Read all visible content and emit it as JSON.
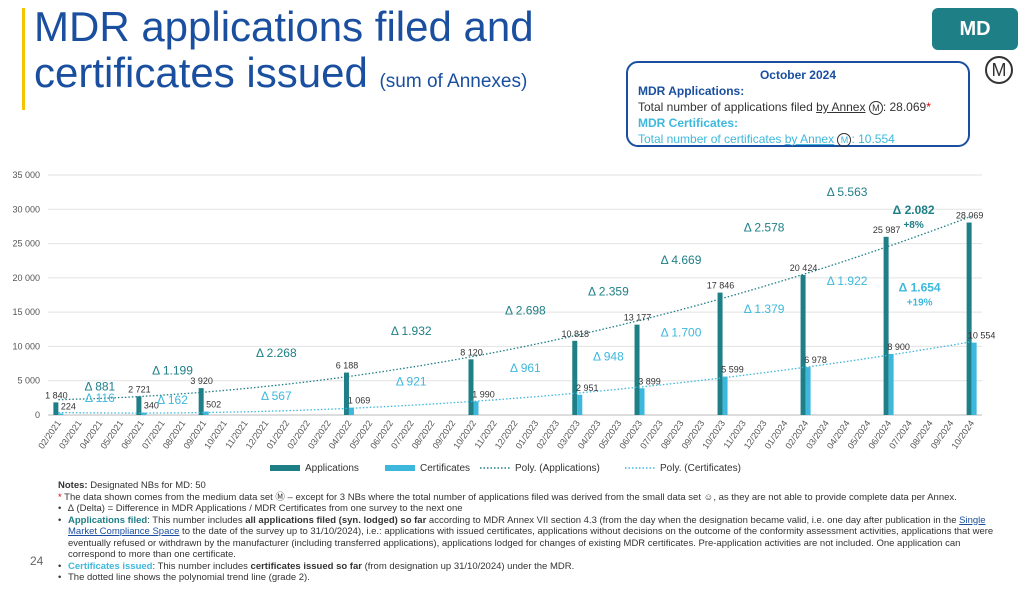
{
  "title": {
    "main_line1": "MDR applications filed and",
    "main_line2": "certificates issued",
    "sub": "(sum of Annexes)"
  },
  "badge": {
    "label": "MD",
    "symbol": "Ⓜ"
  },
  "infobox": {
    "header": "October 2024",
    "app_label": "MDR Applications:",
    "app_text": "Total number of applications filed ",
    "app_link": "by Annex",
    "app_value": ": 28.069",
    "app_star": "*",
    "cert_label": "MDR Certificates:",
    "cert_text": "Total number of certificates ",
    "cert_link": "by Annex",
    "cert_value": ":  10.554",
    "circle": "M"
  },
  "colors": {
    "applications": "#1e7f86",
    "certificates": "#3db8dc",
    "title": "#1a4fa0",
    "grid": "#e2e2e2"
  },
  "chart_data": {
    "type": "bar",
    "categories": [
      "02/2021",
      "03/2021",
      "04/2021",
      "05/2021",
      "06/2021",
      "07/2021",
      "08/2021",
      "09/2021",
      "10/2021",
      "11/2021",
      "12/2021",
      "01/2022",
      "02/2022",
      "03/2022",
      "04/2022",
      "05/2022",
      "06/2022",
      "07/2022",
      "08/2022",
      "09/2022",
      "10/2022",
      "11/2022",
      "12/2022",
      "01/2023",
      "02/2023",
      "03/2023",
      "04/2023",
      "05/2023",
      "06/2023",
      "07/2023",
      "08/2023",
      "09/2023",
      "10/2023",
      "11/2023",
      "12/2023",
      "01/2024",
      "02/2024",
      "03/2024",
      "04/2024",
      "05/2024",
      "06/2024",
      "07/2024",
      "08/2024",
      "09/2024",
      "10/2024"
    ],
    "ylim": [
      0,
      35000
    ],
    "yticks": [
      "0",
      "5 000",
      "10 000",
      "15 000",
      "20 000",
      "25 000",
      "30 000",
      "35 000"
    ],
    "grid": true,
    "legend_position": "bottom",
    "series": [
      {
        "name": "Applications",
        "points": [
          {
            "i": 0,
            "v": 1840,
            "label": "1 840"
          },
          {
            "i": 4,
            "v": 2721,
            "label": "2 721"
          },
          {
            "i": 7,
            "v": 3920,
            "label": "3 920"
          },
          {
            "i": 14,
            "v": 6188,
            "label": "6 188"
          },
          {
            "i": 20,
            "v": 8120,
            "label": "8 120"
          },
          {
            "i": 25,
            "v": 10818,
            "label": "10 818"
          },
          {
            "i": 28,
            "v": 13177,
            "label": "13 177"
          },
          {
            "i": 32,
            "v": 17846,
            "label": "17 846"
          },
          {
            "i": 36,
            "v": 20424,
            "label": "20 424"
          },
          {
            "i": 40,
            "v": 25987,
            "label": "25 987"
          },
          {
            "i": 44,
            "v": 28069,
            "label": "28 069"
          }
        ]
      },
      {
        "name": "Certificates",
        "points": [
          {
            "i": 0,
            "v": 224,
            "label": "224"
          },
          {
            "i": 4,
            "v": 340,
            "label": "340"
          },
          {
            "i": 7,
            "v": 502,
            "label": "502"
          },
          {
            "i": 14,
            "v": 1069,
            "label": "1 069"
          },
          {
            "i": 20,
            "v": 1990,
            "label": "1 990"
          },
          {
            "i": 25,
            "v": 2951,
            "label": "2 951"
          },
          {
            "i": 28,
            "v": 3899,
            "label": "3 899"
          },
          {
            "i": 32,
            "v": 5599,
            "label": "5 599"
          },
          {
            "i": 36,
            "v": 6978,
            "label": "6 978"
          },
          {
            "i": 40,
            "v": 8900,
            "label": "8 900"
          },
          {
            "i": 44,
            "v": 10554,
            "label": "10 554"
          }
        ]
      }
    ],
    "trendlines": [
      {
        "name": "Poly. (Applications)",
        "of": "Applications"
      },
      {
        "name": "Poly. (Certificates)",
        "of": "Certificates"
      }
    ],
    "delta_applications": [
      {
        "between": [
          0,
          4
        ],
        "text": "Δ 881"
      },
      {
        "between": [
          4,
          7
        ],
        "text": "Δ 1.199"
      },
      {
        "between": [
          7,
          14
        ],
        "text": "Δ 2.268"
      },
      {
        "between": [
          14,
          20
        ],
        "text": "Δ 1.932"
      },
      {
        "between": [
          20,
          25
        ],
        "text": "Δ 2.698"
      },
      {
        "between": [
          25,
          28
        ],
        "text": "Δ 2.359"
      },
      {
        "between": [
          28,
          32
        ],
        "text": "Δ 4.669"
      },
      {
        "between": [
          32,
          36
        ],
        "text": "Δ 2.578"
      },
      {
        "between": [
          36,
          40
        ],
        "text": "Δ 5.563"
      },
      {
        "between": [
          40,
          44
        ],
        "text": "Δ 2.082",
        "pct": "+8%"
      }
    ],
    "delta_certificates": [
      {
        "between": [
          0,
          4
        ],
        "text": "Δ 116"
      },
      {
        "between": [
          4,
          7
        ],
        "text": "Δ 162"
      },
      {
        "between": [
          7,
          14
        ],
        "text": "Δ 567"
      },
      {
        "between": [
          14,
          20
        ],
        "text": "Δ 921"
      },
      {
        "between": [
          20,
          25
        ],
        "text": "Δ 961"
      },
      {
        "between": [
          25,
          28
        ],
        "text": "Δ 948"
      },
      {
        "between": [
          28,
          32
        ],
        "text": "Δ 1.700"
      },
      {
        "between": [
          32,
          36
        ],
        "text": "Δ 1.379"
      },
      {
        "between": [
          36,
          40
        ],
        "text": "Δ 1.922"
      },
      {
        "between": [
          40,
          44
        ],
        "text": "Δ 1.654",
        "pct": "+19%"
      }
    ]
  },
  "notes": {
    "title": "Notes:",
    "designated": " Designated NBs for MD: 50",
    "star_text": " The data shown comes from the medium data set Ⓜ  – except for 3 NBs where the total number of applications filed was derived from the small data set ☺, as they are not able to provide complete data per Annex.",
    "delta": "∆ (Delta) = Difference in MDR Applications / MDR Certificates from one survey to the next one",
    "app_filed_label": "Applications filed",
    "app_filed_1": ": This number includes ",
    "app_filed_bold": "all applications filed (syn. lodged) so far",
    "app_filed_2": " according to MDR Annex VII section 4.3 (from the day when the designation became valid, i.e. one day after publication in the ",
    "app_filed_link": "Single Market Compliance Space",
    "app_filed_3": " to the date of the survey up to 31/10/2024), i.e.: applications with issued certificates, applications without decisions on the outcome of the conformity assessment activities, applications that were eventually refused or withdrawn by the manufacturer (including transferred applications), applications lodged for changes of existing MDR certificates. Pre-application activities are not included. One application can correspond to more than one certificate.",
    "cert_label": "Certificates issued",
    "cert_1": ": This number includes ",
    "cert_bold": "certificates issued so far",
    "cert_2": " (from designation up 31/10/2024) under the MDR.",
    "dotted": "The dotted line shows the polynomial trend line (grade 2)."
  },
  "page_number": "24"
}
